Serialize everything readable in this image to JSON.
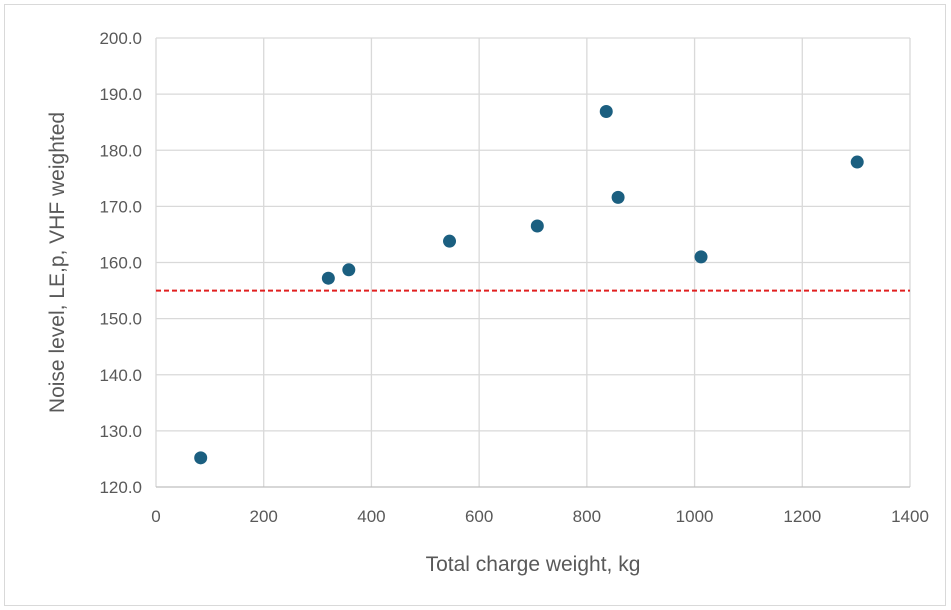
{
  "chart_data": {
    "type": "scatter",
    "title": "",
    "xlabel": "Total charge weight, kg",
    "ylabel": "Noise level, LE,p, VHF weighted",
    "xlim": [
      0,
      1400
    ],
    "ylim": [
      120,
      200
    ],
    "x_ticks": [
      "0",
      "200",
      "400",
      "600",
      "800",
      "1000",
      "1200",
      "1400"
    ],
    "y_ticks": [
      "120.0",
      "130.0",
      "140.0",
      "150.0",
      "160.0",
      "170.0",
      "180.0",
      "190.0",
      "200.0"
    ],
    "x_tick_values": [
      0,
      200,
      400,
      600,
      800,
      1000,
      1200,
      1400
    ],
    "y_tick_values": [
      120,
      130,
      140,
      150,
      160,
      170,
      180,
      190,
      200
    ],
    "grid": true,
    "legend": "none",
    "points": [
      {
        "x": 83,
        "y": 125.2
      },
      {
        "x": 320,
        "y": 157.2
      },
      {
        "x": 358,
        "y": 158.7
      },
      {
        "x": 545,
        "y": 163.8
      },
      {
        "x": 708,
        "y": 166.5
      },
      {
        "x": 836,
        "y": 186.9
      },
      {
        "x": 858,
        "y": 171.6
      },
      {
        "x": 1012,
        "y": 161.0
      },
      {
        "x": 1302,
        "y": 177.9
      }
    ],
    "reference_line": {
      "y": 155,
      "style": "dashed",
      "color": "#e02020"
    },
    "marker_color": "#1b5f80",
    "grid_color": "#d9d9d9",
    "axis_color": "#bfbfbf"
  }
}
